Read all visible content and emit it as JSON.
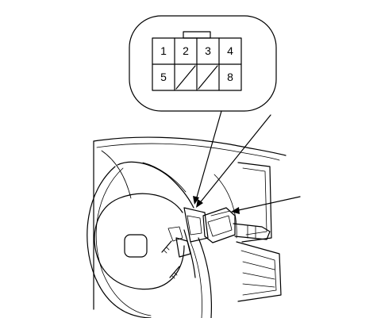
{
  "connector": {
    "pins_top": [
      "1",
      "2",
      "3",
      "4"
    ],
    "pins_bottom": [
      "5",
      "",
      "",
      "8"
    ],
    "empty_cavities": [
      2,
      3
    ]
  },
  "icons": [
    "connector-callout-icon",
    "steering-wheel-icon",
    "combination-switch-icon",
    "callout-arrow-icon"
  ]
}
